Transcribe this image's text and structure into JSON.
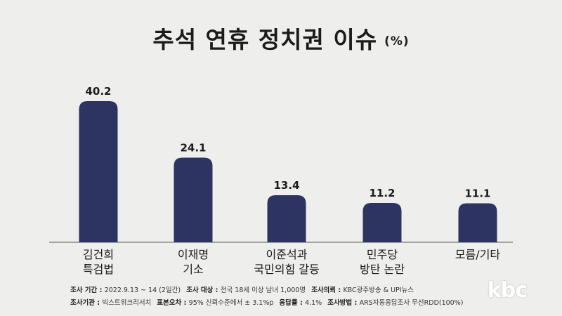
{
  "header": {
    "title": "추석 연휴 정치권 이슈",
    "unit": "(%)"
  },
  "chart_data": {
    "type": "bar",
    "categories": [
      [
        "김건희",
        "특검법"
      ],
      [
        "이재명",
        "기소"
      ],
      [
        "이준석과",
        "국민의힘 갈등"
      ],
      [
        "민주당",
        "방탄 논란"
      ],
      [
        "모름/기타"
      ]
    ],
    "values": [
      40.2,
      24.1,
      13.4,
      11.2,
      11.1
    ],
    "value_labels": [
      "40.2",
      "24.1",
      "13.4",
      "11.2",
      "11.1"
    ],
    "title": "추석 연휴 정치권 이슈",
    "ylim": [
      0,
      45
    ],
    "bar_color": "#2e3461",
    "grid": false
  },
  "footer": {
    "line1": [
      {
        "label": "조사 기간 :",
        "value": "2022.9.13 ~ 14 (2일간)"
      },
      {
        "label": "조사 대상 :",
        "value": "전국 18세 이상 남녀 1,000명"
      },
      {
        "label": "조사의뢰 :",
        "value": "KBC광주방송 & UPI뉴스"
      }
    ],
    "line2": [
      {
        "label": "조사기관 :",
        "value": "빅스트위크리서치"
      },
      {
        "label": "표본오차 :",
        "value": "95% 신뢰수준에서 ± 3.1%p"
      },
      {
        "label": "응답률 :",
        "value": "4.1%"
      },
      {
        "label": "조사방법 :",
        "value": "ARS자동응답조사 무선RDD(100%)"
      }
    ]
  },
  "logo": {
    "text": "kbc"
  }
}
